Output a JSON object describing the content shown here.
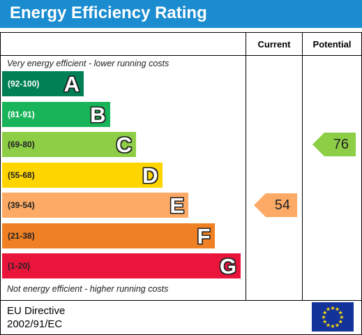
{
  "title": "Energy Efficiency Rating",
  "columns": {
    "current": "Current",
    "potential": "Potential"
  },
  "notes": {
    "top": "Very energy efficient - lower running costs",
    "bottom": "Not energy efficient - higher running costs"
  },
  "chart_data": {
    "type": "bar",
    "categories": [
      "A",
      "B",
      "C",
      "D",
      "E",
      "F",
      "G"
    ],
    "bands": [
      {
        "letter": "A",
        "range": "(92-100)",
        "min": 92,
        "max": 100,
        "color": "#008054",
        "text_color": "#ffffff"
      },
      {
        "letter": "B",
        "range": "(81-91)",
        "min": 81,
        "max": 91,
        "color": "#19b459",
        "text_color": "#ffffff"
      },
      {
        "letter": "C",
        "range": "(69-80)",
        "min": 69,
        "max": 80,
        "color": "#8dce46",
        "text_color": "#222222"
      },
      {
        "letter": "D",
        "range": "(55-68)",
        "min": 55,
        "max": 68,
        "color": "#ffd500",
        "text_color": "#222222"
      },
      {
        "letter": "E",
        "range": "(39-54)",
        "min": 39,
        "max": 54,
        "color": "#fcaa65",
        "text_color": "#222222"
      },
      {
        "letter": "F",
        "range": "(21-38)",
        "min": 21,
        "max": 38,
        "color": "#ef8023",
        "text_color": "#222222"
      },
      {
        "letter": "G",
        "range": "(1-20)",
        "min": 1,
        "max": 20,
        "color": "#e9153b",
        "text_color": "#222222"
      }
    ],
    "current": {
      "value": 54,
      "band": "E",
      "color": "#fcaa65"
    },
    "potential": {
      "value": 76,
      "band": "C",
      "color": "#8dce46"
    }
  },
  "footer": {
    "line1": "EU Directive",
    "line2": "2002/91/EC",
    "flag_color": "#13329a",
    "star_color": "#ffe000"
  }
}
